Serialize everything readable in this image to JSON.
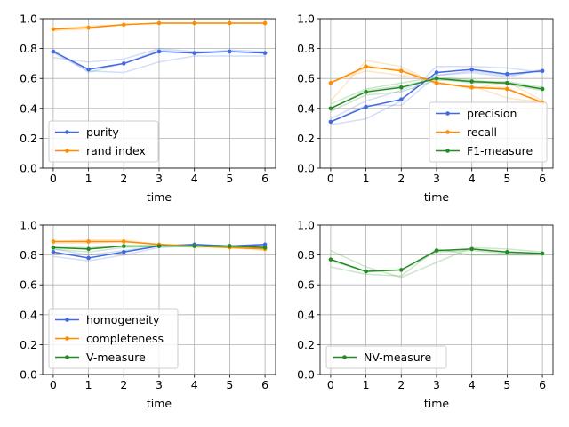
{
  "chart_data": [
    {
      "type": "line",
      "title": "",
      "xlabel": "time",
      "ylabel": "",
      "x": [
        0,
        1,
        2,
        3,
        4,
        5,
        6
      ],
      "xticks": [
        "0",
        "1",
        "2",
        "3",
        "4",
        "5",
        "6"
      ],
      "ylim": [
        0,
        1
      ],
      "yticks": [
        "0.0",
        "0.2",
        "0.4",
        "0.6",
        "0.8",
        "1.0"
      ],
      "grid": true,
      "legend_position": "lower-left",
      "series": [
        {
          "name": "purity",
          "color": "#4169e1",
          "values": [
            0.78,
            0.66,
            0.7,
            0.78,
            0.77,
            0.78,
            0.77
          ],
          "runs": [
            [
              0.77,
              0.65,
              0.64,
              0.71,
              0.75,
              0.75,
              0.75
            ],
            [
              0.74,
              0.71,
              0.73,
              0.8,
              0.78,
              0.78,
              0.77
            ],
            [
              0.79,
              0.64,
              0.7,
              0.79,
              0.77,
              0.79,
              0.78
            ]
          ]
        },
        {
          "name": "rand index",
          "color": "#ff8c00",
          "values": [
            0.93,
            0.94,
            0.96,
            0.97,
            0.97,
            0.97,
            0.97
          ],
          "runs": [
            [
              0.92,
              0.93,
              0.96,
              0.97,
              0.97,
              0.97,
              0.97
            ],
            [
              0.93,
              0.95,
              0.96,
              0.97,
              0.97,
              0.97,
              0.97
            ]
          ]
        }
      ]
    },
    {
      "type": "line",
      "title": "",
      "xlabel": "time",
      "ylabel": "",
      "x": [
        0,
        1,
        2,
        3,
        4,
        5,
        6
      ],
      "xticks": [
        "0",
        "1",
        "2",
        "3",
        "4",
        "5",
        "6"
      ],
      "ylim": [
        0,
        1
      ],
      "yticks": [
        "0.0",
        "0.2",
        "0.4",
        "0.6",
        "0.8",
        "1.0"
      ],
      "grid": true,
      "legend_position": "center-right",
      "series": [
        {
          "name": "precision",
          "color": "#4169e1",
          "values": [
            0.31,
            0.41,
            0.46,
            0.64,
            0.66,
            0.63,
            0.65
          ],
          "runs": [
            [
              0.29,
              0.33,
              0.45,
              0.68,
              0.68,
              0.67,
              0.64
            ],
            [
              0.33,
              0.45,
              0.52,
              0.62,
              0.64,
              0.61,
              0.66
            ],
            [
              0.31,
              0.42,
              0.42,
              0.62,
              0.65,
              0.62,
              0.65
            ]
          ]
        },
        {
          "name": "recall",
          "color": "#ff8c00",
          "values": [
            0.57,
            0.68,
            0.65,
            0.57,
            0.54,
            0.53,
            0.44
          ],
          "runs": [
            [
              0.45,
              0.72,
              0.68,
              0.56,
              0.55,
              0.47,
              0.44
            ],
            [
              0.58,
              0.65,
              0.62,
              0.58,
              0.53,
              0.58,
              0.45
            ],
            [
              0.57,
              0.67,
              0.66,
              0.57,
              0.54,
              0.54,
              0.43
            ]
          ]
        },
        {
          "name": "F1-measure",
          "color": "#228b22",
          "values": [
            0.4,
            0.51,
            0.54,
            0.6,
            0.58,
            0.57,
            0.53
          ],
          "runs": [
            [
              0.43,
              0.53,
              0.57,
              0.61,
              0.59,
              0.56,
              0.52
            ],
            [
              0.38,
              0.49,
              0.51,
              0.59,
              0.58,
              0.58,
              0.54
            ],
            [
              0.4,
              0.52,
              0.55,
              0.6,
              0.57,
              0.57,
              0.53
            ]
          ]
        }
      ]
    },
    {
      "type": "line",
      "title": "",
      "xlabel": "time",
      "ylabel": "",
      "x": [
        0,
        1,
        2,
        3,
        4,
        5,
        6
      ],
      "xticks": [
        "0",
        "1",
        "2",
        "3",
        "4",
        "5",
        "6"
      ],
      "ylim": [
        0,
        1
      ],
      "yticks": [
        "0.0",
        "0.2",
        "0.4",
        "0.6",
        "0.8",
        "1.0"
      ],
      "grid": true,
      "legend_position": "lower-left",
      "series": [
        {
          "name": "homogeneity",
          "color": "#4169e1",
          "values": [
            0.82,
            0.78,
            0.82,
            0.86,
            0.87,
            0.86,
            0.87
          ],
          "runs": [
            [
              0.79,
              0.76,
              0.8,
              0.85,
              0.86,
              0.85,
              0.86
            ],
            [
              0.84,
              0.8,
              0.83,
              0.86,
              0.87,
              0.86,
              0.87
            ]
          ]
        },
        {
          "name": "completeness",
          "color": "#ff8c00",
          "values": [
            0.89,
            0.89,
            0.89,
            0.87,
            0.86,
            0.85,
            0.84
          ],
          "runs": [
            [
              0.88,
              0.88,
              0.89,
              0.87,
              0.86,
              0.85,
              0.83
            ],
            [
              0.89,
              0.9,
              0.9,
              0.87,
              0.85,
              0.85,
              0.84
            ]
          ]
        },
        {
          "name": "V-measure",
          "color": "#228b22",
          "values": [
            0.85,
            0.84,
            0.86,
            0.86,
            0.86,
            0.86,
            0.85
          ],
          "runs": [
            [
              0.84,
              0.82,
              0.85,
              0.86,
              0.86,
              0.85,
              0.85
            ],
            [
              0.85,
              0.85,
              0.86,
              0.86,
              0.86,
              0.86,
              0.86
            ]
          ]
        }
      ]
    },
    {
      "type": "line",
      "title": "",
      "xlabel": "time",
      "ylabel": "",
      "x": [
        0,
        1,
        2,
        3,
        4,
        5,
        6
      ],
      "xticks": [
        "0",
        "1",
        "2",
        "3",
        "4",
        "5",
        "6"
      ],
      "ylim": [
        0,
        1
      ],
      "yticks": [
        "0.0",
        "0.2",
        "0.4",
        "0.6",
        "0.8",
        "1.0"
      ],
      "grid": true,
      "legend_position": "lower-left",
      "series": [
        {
          "name": "NV-measure",
          "color": "#228b22",
          "values": [
            0.77,
            0.69,
            0.7,
            0.83,
            0.84,
            0.82,
            0.81
          ],
          "runs": [
            [
              0.83,
              0.72,
              0.65,
              0.75,
              0.85,
              0.84,
              0.82
            ],
            [
              0.72,
              0.67,
              0.66,
              0.84,
              0.8,
              0.8,
              0.8
            ],
            [
              0.76,
              0.69,
              0.7,
              0.82,
              0.83,
              0.81,
              0.81
            ]
          ]
        }
      ]
    }
  ]
}
